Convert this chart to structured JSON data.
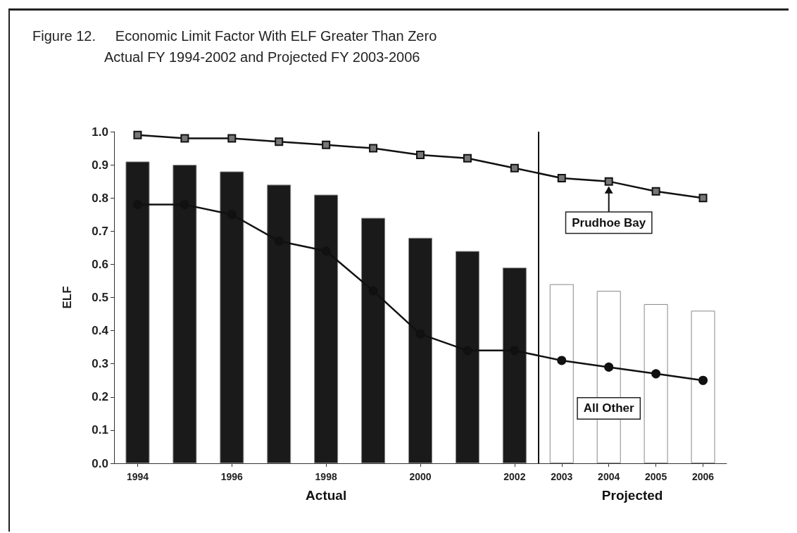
{
  "chart_data": {
    "type": "bar",
    "title": "Figure 12.     Economic Limit Factor With ELF Greater Than Zero",
    "subtitle": "Actual FY 1994-2002 and Projected FY 2003-2006",
    "ylabel": "ELF",
    "x": [
      1994,
      1995,
      1996,
      1997,
      1998,
      1999,
      2000,
      2001,
      2002,
      2003,
      2004,
      2005,
      2006
    ],
    "values": [
      0.91,
      0.9,
      0.88,
      0.84,
      0.81,
      0.74,
      0.68,
      0.64,
      0.59,
      0.54,
      0.52,
      0.48,
      0.46
    ],
    "colors": [
      "#1a1a1a",
      "#1a1a1a",
      "#1a1a1a",
      "#1a1a1a",
      "#1a1a1a",
      "#1a1a1a",
      "#1a1a1a",
      "#1a1a1a",
      "#1a1a1a",
      "#ffffff",
      "#ffffff",
      "#ffffff",
      "#ffffff"
    ],
    "series": [
      {
        "type": "line",
        "color": "#111111",
        "marker": "square",
        "values": [
          0.99,
          0.98,
          0.98,
          0.97,
          0.96,
          0.95,
          0.93,
          0.92,
          0.89,
          0.86,
          0.85,
          0.82,
          0.8
        ]
      },
      {
        "type": "line",
        "color": "#111111",
        "marker": "circle",
        "values": [
          0.78,
          0.78,
          0.75,
          0.67,
          0.64,
          0.52,
          0.39,
          0.34,
          0.34,
          0.31,
          0.29,
          0.27,
          0.25
        ]
      }
    ],
    "xlim": [
      1993.5,
      2006.5
    ],
    "xticks": [
      1994,
      1996,
      1998,
      2000,
      2002,
      2003,
      2004,
      2005,
      2006
    ],
    "ylim": [
      0,
      1
    ],
    "yticks": [
      {
        "value": 0,
        "label": "0.0"
      },
      0.1,
      0.2,
      0.3,
      0.4,
      0.5,
      0.6,
      0.7,
      0.8,
      0.9,
      {
        "value": 1,
        "label": "1.0"
      }
    ],
    "grid": false,
    "line_style": "solid",
    "ref_lines": [
      {
        "axis": "x",
        "value": 2002.5,
        "color": "#111111"
      }
    ],
    "annotations": [
      {
        "text": "Prudhoe Bay",
        "x": 2004,
        "y": 0.85
      },
      {
        "text": "All Other",
        "x": 2004,
        "y": 0.29
      },
      "Actual",
      "Projected"
    ]
  }
}
